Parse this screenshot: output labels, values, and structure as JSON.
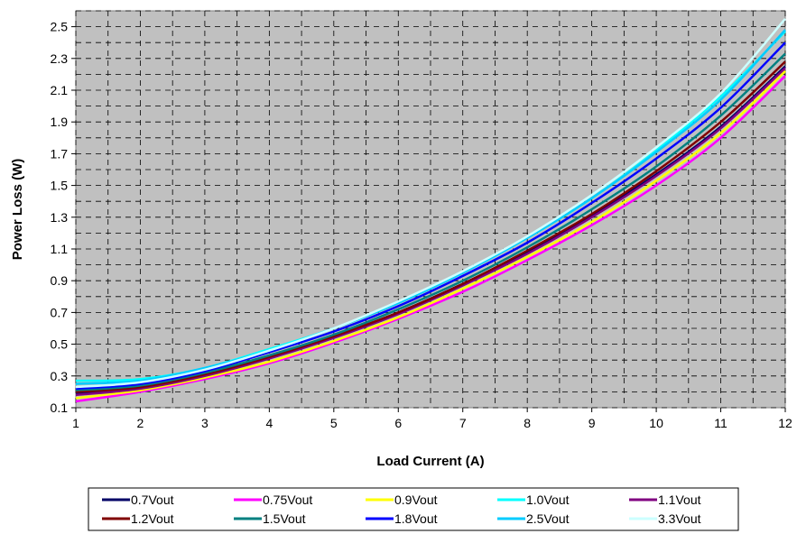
{
  "chart_data": {
    "type": "line",
    "xlabel": "Load Current (A)",
    "ylabel": "Power Loss (W)",
    "xlim": [
      1,
      12
    ],
    "ylim": [
      0.1,
      2.6
    ],
    "x_ticks": [
      "1",
      "2",
      "3",
      "4",
      "5",
      "6",
      "7",
      "8",
      "9",
      "10",
      "11",
      "12"
    ],
    "y_ticks": [
      "0.1",
      "0.3",
      "0.5",
      "0.7",
      "0.9",
      "1.1",
      "1.3",
      "1.5",
      "1.7",
      "1.9",
      "2.1",
      "2.3",
      "2.5"
    ],
    "grid": true,
    "legend_position": "bottom",
    "x": [
      1,
      2,
      3,
      4,
      5,
      6,
      7,
      8,
      9,
      10,
      11,
      12
    ],
    "series": [
      {
        "name": "0.7Vout",
        "color": "#000066",
        "values": [
          0.19,
          0.23,
          0.31,
          0.42,
          0.55,
          0.7,
          0.88,
          1.08,
          1.31,
          1.57,
          1.87,
          2.25
        ]
      },
      {
        "name": "0.75Vout",
        "color": "#ff00ff",
        "values": [
          0.14,
          0.2,
          0.28,
          0.38,
          0.51,
          0.66,
          0.83,
          1.03,
          1.25,
          1.5,
          1.8,
          2.19
        ]
      },
      {
        "name": "0.9Vout",
        "color": "#ffff00",
        "values": [
          0.16,
          0.21,
          0.29,
          0.39,
          0.52,
          0.67,
          0.85,
          1.05,
          1.27,
          1.53,
          1.83,
          2.22
        ]
      },
      {
        "name": "1.0Vout",
        "color": "#00ffff",
        "values": [
          0.27,
          0.28,
          0.35,
          0.47,
          0.6,
          0.76,
          0.95,
          1.17,
          1.42,
          1.72,
          2.06,
          2.47
        ]
      },
      {
        "name": "1.1Vout",
        "color": "#800080",
        "values": [
          0.18,
          0.22,
          0.3,
          0.41,
          0.54,
          0.69,
          0.87,
          1.07,
          1.3,
          1.56,
          1.86,
          2.24
        ]
      },
      {
        "name": "1.2Vout",
        "color": "#800000",
        "values": [
          0.2,
          0.23,
          0.31,
          0.42,
          0.55,
          0.7,
          0.88,
          1.09,
          1.32,
          1.59,
          1.9,
          2.28
        ]
      },
      {
        "name": "1.5Vout",
        "color": "#008080",
        "values": [
          0.21,
          0.24,
          0.32,
          0.43,
          0.56,
          0.72,
          0.9,
          1.11,
          1.35,
          1.62,
          1.94,
          2.33
        ]
      },
      {
        "name": "1.8Vout",
        "color": "#0000ff",
        "values": [
          0.22,
          0.25,
          0.33,
          0.45,
          0.58,
          0.74,
          0.93,
          1.14,
          1.39,
          1.67,
          1.99,
          2.4
        ]
      },
      {
        "name": "2.5Vout",
        "color": "#00ccff",
        "values": [
          0.25,
          0.27,
          0.35,
          0.46,
          0.6,
          0.76,
          0.95,
          1.17,
          1.42,
          1.71,
          2.04,
          2.48
        ]
      },
      {
        "name": "3.3Vout",
        "color": "#ccffff",
        "values": [
          0.23,
          0.26,
          0.34,
          0.46,
          0.6,
          0.77,
          0.96,
          1.18,
          1.44,
          1.74,
          2.08,
          2.55
        ]
      }
    ]
  }
}
